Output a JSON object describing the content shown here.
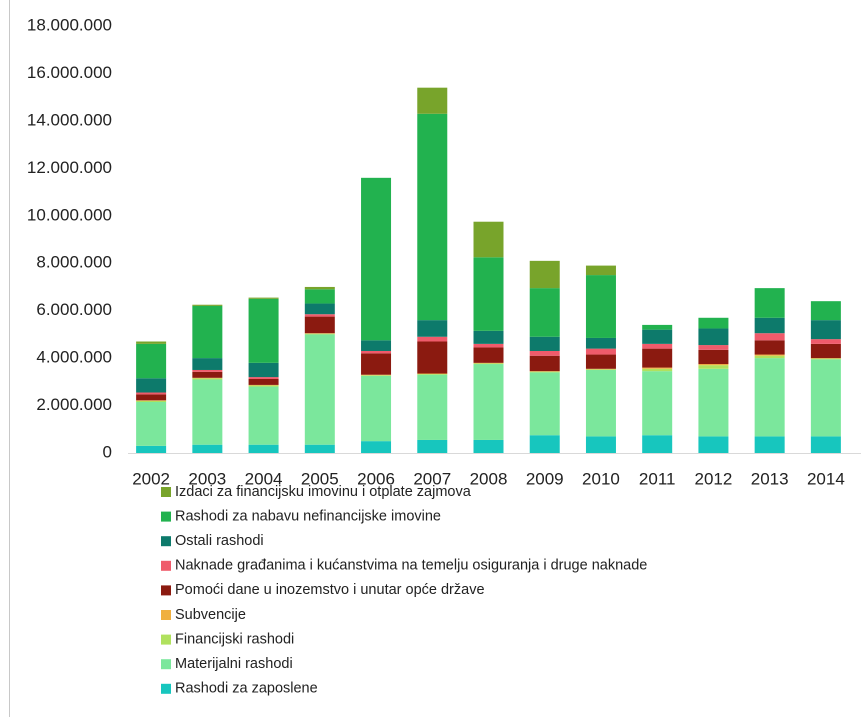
{
  "chart_data": {
    "type": "stacked_bar",
    "categories": [
      "2002",
      "2003",
      "2004",
      "2005",
      "2006",
      "2007",
      "2008",
      "2009",
      "2010",
      "2011",
      "2012",
      "2013",
      "2014"
    ],
    "series": [
      {
        "name": "Rashodi za zaposlene",
        "color": "#17c6be",
        "values": [
          300000,
          350000,
          350000,
          350000,
          500000,
          550000,
          550000,
          750000,
          700000,
          750000,
          700000,
          700000,
          700000
        ]
      },
      {
        "name": "Materijalni rashodi",
        "color": "#7be79c",
        "values": [
          1850000,
          2750000,
          2450000,
          4650000,
          2750000,
          2750000,
          3200000,
          2650000,
          2800000,
          2700000,
          2850000,
          3300000,
          3250000
        ]
      },
      {
        "name": "Financijski rashodi",
        "color": "#b0e15e",
        "values": [
          50000,
          50000,
          50000,
          30000,
          30000,
          30000,
          30000,
          30000,
          30000,
          100000,
          150000,
          100000,
          30000
        ]
      },
      {
        "name": "Subvencije",
        "color": "#f0b040",
        "values": [
          20000,
          20000,
          20000,
          20000,
          20000,
          20000,
          20000,
          20000,
          20000,
          50000,
          50000,
          50000,
          20000
        ]
      },
      {
        "name": "Pomoći dane u inozemstvo i unutar opće države",
        "color": "#8b1a10",
        "values": [
          250000,
          250000,
          250000,
          700000,
          900000,
          1350000,
          650000,
          650000,
          600000,
          800000,
          600000,
          600000,
          600000
        ]
      },
      {
        "name": "Naknade građanima i kućanstvima na temelju osiguranja i druge naknade",
        "color": "#ef5b6b",
        "values": [
          80000,
          80000,
          80000,
          100000,
          100000,
          200000,
          150000,
          200000,
          250000,
          200000,
          200000,
          300000,
          200000
        ]
      },
      {
        "name": "Ostali rashodi",
        "color": "#0d7a6b",
        "values": [
          600000,
          500000,
          600000,
          450000,
          450000,
          700000,
          550000,
          600000,
          450000,
          600000,
          700000,
          650000,
          800000
        ]
      },
      {
        "name": "Rashodi za nabavu nefinancijske imovine",
        "color": "#22b24f",
        "values": [
          1450000,
          2200000,
          2700000,
          600000,
          6850000,
          8700000,
          3100000,
          2050000,
          2650000,
          200000,
          450000,
          1250000,
          800000
        ]
      },
      {
        "name": "Izdaci za financijsku imovinu i otplate zajmova",
        "color": "#78a42b",
        "values": [
          100000,
          50000,
          50000,
          100000,
          0,
          1100000,
          1500000,
          1150000,
          400000,
          0,
          0,
          0,
          0
        ]
      }
    ],
    "ylim": [
      0,
      18000000
    ],
    "yticks": [
      0,
      {
        "value": 2000000,
        "label": "2.000.000"
      },
      {
        "value": 4000000,
        "label": "4.000.000"
      },
      {
        "value": 6000000,
        "label": "6.000.000"
      },
      {
        "value": 8000000,
        "label": "8.000.000"
      },
      {
        "value": 10000000,
        "label": "10.000.000"
      },
      {
        "value": 12000000,
        "label": "12.000.000"
      },
      {
        "value": 14000000,
        "label": "14.000.000"
      },
      {
        "value": 16000000,
        "label": "16.000.000"
      },
      {
        "value": 18000000,
        "label": "18.000.000"
      }
    ],
    "grid": false
  }
}
